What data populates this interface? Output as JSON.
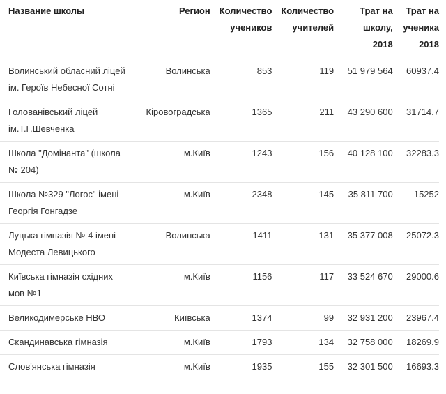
{
  "table": {
    "header": [
      "Название школы",
      "Регион",
      "Количество учеников",
      "Количество учителей",
      "Трат на школу, 2018",
      "Трат на ученика 2018"
    ],
    "rows": [
      [
        "Волинський обласний ліцей ім. Героїв Небесної Сотні",
        "Волинська",
        "853",
        "119",
        "51 979 564",
        "60937.4"
      ],
      [
        "Голованівський ліцей ім.Т.Г.Шевченка",
        "Кіровоградська",
        "1365",
        "211",
        "43 290 600",
        "31714.7"
      ],
      [
        "Школа \"Домінанта\" (школа № 204)",
        "м.Київ",
        "1243",
        "156",
        "40 128 100",
        "32283.3"
      ],
      [
        "Школа №329 \"Логос\" імені Георгія Гонгадзе",
        "м.Київ",
        "2348",
        "145",
        "35 811 700",
        "15252"
      ],
      [
        "Луцька гімназія № 4 імені Модеста Левицького",
        "Волинська",
        "1411",
        "131",
        "35 377 008",
        "25072.3"
      ],
      [
        "Київська гімназія східних мов №1",
        "м.Київ",
        "1156",
        "117",
        "33 524 670",
        "29000.6"
      ],
      [
        "Великодимерське НВО",
        "Київська",
        "1374",
        "99",
        "32 931 200",
        "23967.4"
      ],
      [
        "Скандинавська гімназія",
        "м.Київ",
        "1793",
        "134",
        "32 758 000",
        "18269.9"
      ],
      [
        "Слов'янська гімназія",
        "м.Київ",
        "1935",
        "155",
        "32 301 500",
        "16693.3"
      ]
    ]
  }
}
